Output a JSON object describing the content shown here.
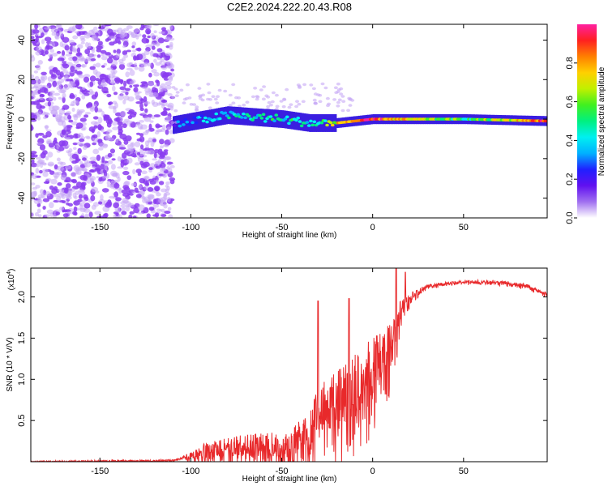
{
  "title": "C2E2.2024.222.20.43.R08",
  "colors": {
    "snr_line": "#e8292b",
    "noise_dots": "#8a3cf0",
    "core_band": "#3a1ee0"
  },
  "chart_data": [
    {
      "type": "heatmap",
      "xlabel": "Height of straight line (km)",
      "ylabel": "Frequency (Hz)",
      "xlim": [
        -188,
        96
      ],
      "ylim": [
        -50,
        48
      ],
      "xticks": [
        -150,
        -100,
        -50,
        0,
        50
      ],
      "xtick_labels": [
        "-150",
        "-100",
        "-50",
        "0",
        "50"
      ],
      "yticks": [
        -40,
        -20,
        0,
        20,
        40
      ],
      "ytick_labels": [
        "-40",
        "-20",
        "0",
        "20",
        "40"
      ],
      "colorbar": {
        "label": "Normalized spectral amplitude",
        "range": [
          0.0,
          1.0
        ],
        "ticks": [
          0.0,
          0.2,
          0.4,
          0.6,
          0.8
        ],
        "tick_labels": [
          "0.0",
          "0.2",
          "0.4",
          "0.6",
          "0.8"
        ],
        "colormap": [
          "#ffffff",
          "#a070f0",
          "#6010f0",
          "#2020ff",
          "#00b0ff",
          "#00f0f0",
          "#00f080",
          "#40f020",
          "#c0f000",
          "#ffd000",
          "#ff8000",
          "#ff2020",
          "#ff20a0"
        ]
      },
      "signal_band": {
        "description": "narrow band near 0 Hz",
        "x_start": -110,
        "x_end": 96,
        "center_hz": [
          [
            -110,
            -3
          ],
          [
            -80,
            2
          ],
          [
            -50,
            0
          ],
          [
            -35,
            -2
          ],
          [
            -20,
            -2
          ],
          [
            0,
            0
          ],
          [
            50,
            0
          ],
          [
            96,
            -1
          ]
        ],
        "amplitude": [
          [
            -110,
            0.2
          ],
          [
            -90,
            0.35
          ],
          [
            -60,
            0.45
          ],
          [
            -30,
            0.45
          ],
          [
            -15,
            0.8
          ],
          [
            0,
            0.9
          ],
          [
            20,
            0.7
          ],
          [
            50,
            0.5
          ],
          [
            80,
            0.75
          ],
          [
            96,
            0.95
          ]
        ]
      },
      "noise_region": {
        "x_start": -188,
        "x_end": -110,
        "level": 0.2
      }
    },
    {
      "type": "line",
      "xlabel": "Height of straight line (km)",
      "ylabel": "SNR (10 * V/V)",
      "y_multiplier": "(x10",
      "y_multiplier_exp": "4",
      "y_multiplier_close": ")",
      "xlim": [
        -188,
        96
      ],
      "ylim": [
        0,
        2.35
      ],
      "xticks": [
        -150,
        -100,
        -50,
        0,
        50
      ],
      "xtick_labels": [
        "-150",
        "-100",
        "-50",
        "0",
        "50"
      ],
      "yticks": [
        0.5,
        1.0,
        1.5,
        2.0
      ],
      "ytick_labels": [
        "0.5",
        "1.0",
        "1.5",
        "2.0"
      ],
      "envelope": [
        [
          -188,
          0.0
        ],
        [
          -110,
          0.02
        ],
        [
          -105,
          0.05
        ],
        [
          -95,
          0.2
        ],
        [
          -80,
          0.3
        ],
        [
          -60,
          0.35
        ],
        [
          -45,
          0.4
        ],
        [
          -35,
          0.6
        ],
        [
          -30,
          0.9
        ],
        [
          -20,
          1.1
        ],
        [
          -10,
          1.3
        ],
        [
          0,
          1.5
        ],
        [
          10,
          1.7
        ],
        [
          15,
          1.95
        ],
        [
          20,
          2.05
        ],
        [
          30,
          2.15
        ],
        [
          50,
          2.2
        ],
        [
          70,
          2.2
        ],
        [
          85,
          2.15
        ],
        [
          96,
          2.05
        ]
      ],
      "spread": [
        [
          -188,
          0.0
        ],
        [
          -105,
          0.02
        ],
        [
          -95,
          0.35
        ],
        [
          -60,
          0.45
        ],
        [
          -40,
          0.7
        ],
        [
          -20,
          1.2
        ],
        [
          -5,
          1.3
        ],
        [
          10,
          0.9
        ],
        [
          18,
          0.25
        ],
        [
          30,
          0.05
        ],
        [
          96,
          0.06
        ]
      ],
      "peaks": [
        [
          -30,
          1.95
        ],
        [
          -13,
          1.98
        ],
        [
          13,
          2.35
        ],
        [
          18,
          2.3
        ]
      ]
    }
  ]
}
